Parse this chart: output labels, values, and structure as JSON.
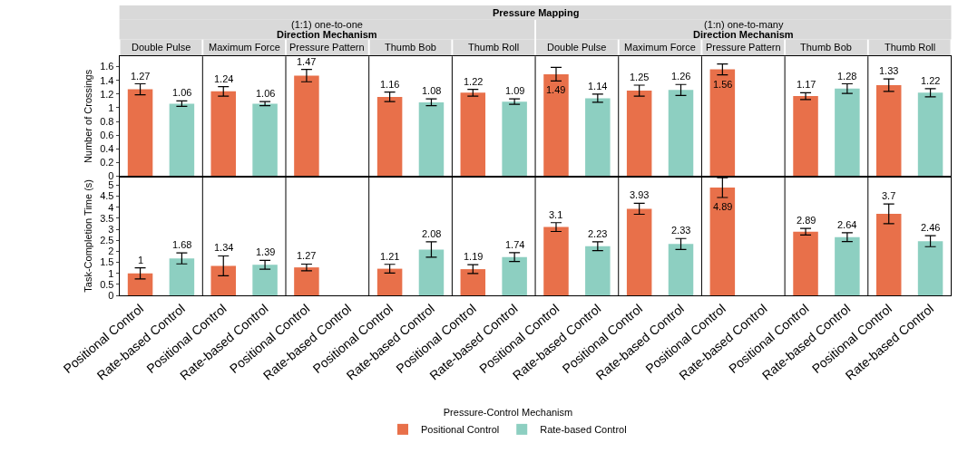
{
  "chart_data": [
    {
      "type": "bar",
      "annotations": [
        "Pressure Mapping",
        "(1:1) one-to-one",
        "Direction Mechanism",
        "(1:n) one-to-many",
        "Direction Mechanism",
        "Double Pulse",
        "Maximum Force",
        "Pressure Pattern",
        "Thumb Bob",
        "Thumb Roll",
        "Double Pulse",
        "Maximum Force",
        "Pressure Pattern",
        "Thumb Bob",
        "Thumb Roll"
      ],
      "ylabel": "Number of Crossings",
      "legend": "bottom",
      "legend_title": "Pressure-Control Mechanism",
      "categories": [
        null,
        null,
        null,
        null,
        null,
        null,
        null,
        null,
        null,
        null,
        null,
        null,
        null,
        null,
        null,
        null,
        null,
        null,
        null,
        null
      ],
      "ylim": [
        0,
        1.75
      ],
      "yticks": [
        0,
        0.2,
        0.4,
        0.6,
        0.8,
        1,
        1.2,
        1.4,
        1.6
      ],
      "tick_labels": "y",
      "data_labels": true,
      "series": [
        {
          "name": "Positional Control",
          "color": "#e8704a",
          "values": [
            1.27,
            null,
            1.24,
            null,
            1.47,
            null,
            1.16,
            null,
            1.22,
            null,
            1.49,
            null,
            1.25,
            null,
            1.56,
            null,
            1.17,
            null,
            1.33,
            null
          ],
          "errors": [
            0.08,
            null,
            0.07,
            null,
            0.09,
            null,
            0.07,
            null,
            0.05,
            null,
            0.1,
            null,
            0.08,
            null,
            0.08,
            null,
            0.05,
            null,
            0.09,
            null
          ]
        },
        {
          "name": "Rate-based Control",
          "color": "#8dcfc1",
          "values": [
            null,
            1.06,
            null,
            1.06,
            null,
            null,
            null,
            1.08,
            null,
            1.09,
            null,
            1.14,
            null,
            1.26,
            null,
            null,
            null,
            1.28,
            null,
            1.22
          ],
          "errors": [
            null,
            0.04,
            null,
            0.03,
            null,
            null,
            null,
            0.05,
            null,
            0.04,
            null,
            0.06,
            null,
            0.08,
            null,
            null,
            null,
            0.07,
            null,
            0.06
          ]
        }
      ]
    },
    {
      "type": "bar",
      "ylabel": "Task-Completion Time (s)",
      "categories": [
        "Positional Control",
        "Rate-based Control",
        "Positional Control",
        "Rate-based Control",
        "Positional Control",
        "Rate-based Control",
        "Positional Control",
        "Rate-based Control",
        "Positional Control",
        "Rate-based Control",
        "Positional Control",
        "Rate-based Control",
        "Positional Control",
        "Rate-based Control",
        "Positional Control",
        "Rate-based Control",
        "Positional Control",
        "Rate-based Control",
        "Positional Control",
        "Rate-based Control"
      ],
      "ylim": [
        0,
        5.4
      ],
      "yticks": [
        0,
        0.5,
        1,
        1.5,
        2,
        2.5,
        3,
        3.5,
        4,
        4.5,
        5
      ],
      "data_labels": true,
      "series": [
        {
          "color": "#e8704a",
          "values": [
            1,
            null,
            1.34,
            null,
            1.27,
            null,
            1.21,
            null,
            1.19,
            null,
            3.1,
            null,
            3.93,
            null,
            4.89,
            null,
            2.89,
            null,
            3.7,
            null
          ],
          "errors": [
            0.25,
            null,
            0.45,
            null,
            0.15,
            null,
            0.2,
            null,
            0.2,
            null,
            0.2,
            null,
            0.25,
            null,
            0.45,
            null,
            0.15,
            null,
            0.45,
            null
          ]
        },
        {
          "color": "#8dcfc1",
          "values": [
            null,
            1.68,
            null,
            1.39,
            null,
            null,
            null,
            2.08,
            null,
            1.74,
            null,
            2.23,
            null,
            2.33,
            null,
            null,
            null,
            2.64,
            null,
            2.46
          ],
          "errors": [
            null,
            0.25,
            null,
            0.2,
            null,
            null,
            null,
            0.35,
            null,
            0.2,
            null,
            0.2,
            null,
            0.25,
            null,
            null,
            null,
            0.2,
            null,
            0.25
          ]
        }
      ]
    }
  ]
}
